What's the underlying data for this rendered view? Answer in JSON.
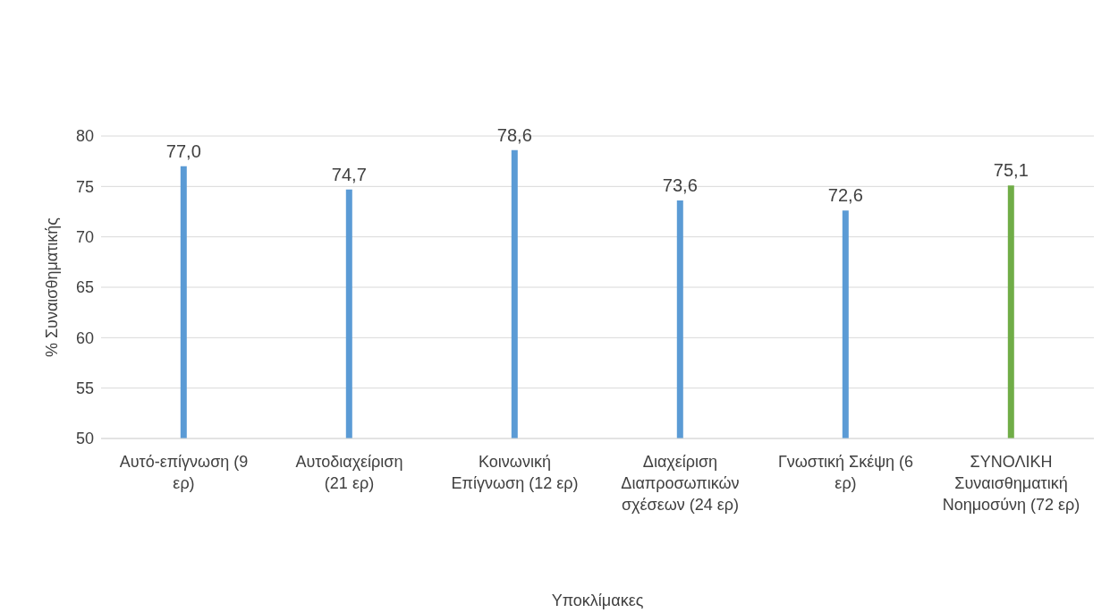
{
  "chart_data": {
    "type": "bar",
    "xlabel": "Υποκλίμακες",
    "ylabel": "% Συναισθηματικής",
    "categories": [
      "Αυτό-επίγνωση (9 ερ)",
      "Αυτοδιαχείριση (21 ερ)",
      "Κοινωνική Επίγνωση (12 ερ)",
      "Διαχείριση Διαπροσωπικών σχέσεων (24 ερ)",
      "Γνωστική Σκέψη (6 ερ)",
      "ΣΥΝΟΛΙΚΗ Συναισθηματική Νοημοσύνη (72 ερ)"
    ],
    "values": [
      77.0,
      74.7,
      78.6,
      73.6,
      72.6,
      75.1
    ],
    "colors": [
      "#5b9bd5",
      "#5b9bd5",
      "#5b9bd5",
      "#5b9bd5",
      "#5b9bd5",
      "#70ad47"
    ],
    "value_labels": [
      "77,0",
      "74,7",
      "78,6",
      "73,6",
      "72,6",
      "75,1"
    ],
    "ylim": [
      50,
      80
    ],
    "yticks": [
      50,
      55,
      60,
      65,
      70,
      75,
      80
    ],
    "grid": "y"
  }
}
